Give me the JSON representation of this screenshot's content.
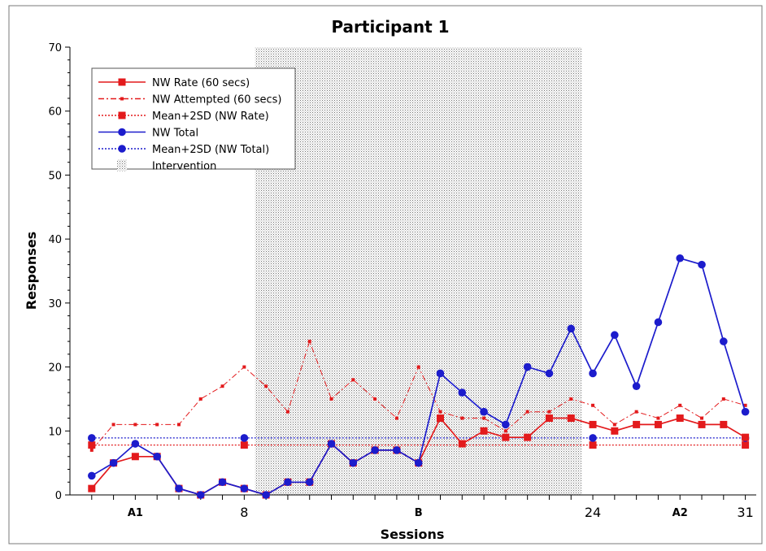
{
  "chart_data": {
    "type": "line",
    "title": "Participant 1",
    "xlabel": "Sessions",
    "ylabel": "Responses",
    "xlim": [
      0,
      31.5
    ],
    "ylim": [
      0,
      70
    ],
    "y_ticks": [
      0,
      10,
      20,
      30,
      40,
      50,
      60,
      70
    ],
    "x_tick_labels": [
      {
        "x": 8,
        "label": "8"
      },
      {
        "x": 24,
        "label": "24"
      },
      {
        "x": 31,
        "label": "31"
      }
    ],
    "phase_labels": [
      {
        "x": 3,
        "label": "A1"
      },
      {
        "x": 16,
        "label": "B"
      },
      {
        "x": 28,
        "label": "A2"
      }
    ],
    "intervention_shading": {
      "from": 8.5,
      "to": 23.5,
      "label": "Intervention"
    },
    "phase_boundaries": [
      8.5,
      23.5
    ],
    "legend_position": "top-left",
    "grid": false,
    "series": [
      {
        "name": "NW Rate (60 secs)",
        "style": "solid-square",
        "color": "#e31a1c",
        "x": [
          1,
          2,
          3,
          4,
          5,
          6,
          7,
          8,
          9,
          10,
          11,
          12,
          13,
          14,
          15,
          16,
          17,
          18,
          19,
          20,
          21,
          22,
          23,
          24,
          25,
          26,
          27,
          28,
          29,
          30,
          31
        ],
        "y": [
          1,
          5,
          6,
          6,
          1,
          0,
          2,
          1,
          0,
          2,
          2,
          8,
          5,
          7,
          7,
          5,
          12,
          8,
          10,
          9,
          9,
          12,
          12,
          11,
          10,
          11,
          11,
          12,
          11,
          11,
          9
        ]
      },
      {
        "name": "NW Attempted (60 secs)",
        "style": "dashdot-small",
        "color": "#e31a1c",
        "x": [
          1,
          2,
          3,
          4,
          5,
          6,
          7,
          8,
          9,
          10,
          11,
          12,
          13,
          14,
          15,
          16,
          17,
          18,
          19,
          20,
          21,
          22,
          23,
          24,
          25,
          26,
          27,
          28,
          29,
          30,
          31
        ],
        "y": [
          7,
          11,
          11,
          11,
          11,
          15,
          17,
          20,
          17,
          13,
          24,
          15,
          18,
          15,
          12,
          20,
          13,
          12,
          12,
          10,
          13,
          13,
          15,
          14,
          11,
          13,
          12,
          14,
          12,
          15,
          14
        ]
      },
      {
        "name": "Mean+2SD (NW Rate)",
        "style": "dotted-square",
        "color": "#e31a1c",
        "x": [
          1,
          31
        ],
        "y": [
          7.8,
          7.8
        ],
        "markers_x": [
          1,
          8,
          24,
          31
        ]
      },
      {
        "name": "NW Total",
        "style": "solid-circle",
        "color": "#1c1ccc",
        "x": [
          1,
          2,
          3,
          4,
          5,
          6,
          7,
          8,
          9,
          10,
          11,
          12,
          13,
          14,
          15,
          16,
          17,
          18,
          19,
          20,
          21,
          22,
          23,
          24,
          25,
          26,
          27,
          28,
          29,
          30,
          31
        ],
        "y": [
          3,
          5,
          8,
          6,
          1,
          0,
          2,
          1,
          0,
          2,
          2,
          8,
          5,
          7,
          7,
          5,
          19,
          16,
          13,
          11,
          20,
          19,
          26,
          19,
          25,
          17,
          27,
          37,
          36,
          24,
          13
        ]
      },
      {
        "name": "Mean+2SD (NW Total)",
        "style": "dotted-circle",
        "color": "#1c1ccc",
        "x": [
          1,
          31
        ],
        "y": [
          8.9,
          8.9
        ],
        "markers_x": [
          1,
          8,
          24,
          31
        ]
      }
    ]
  }
}
